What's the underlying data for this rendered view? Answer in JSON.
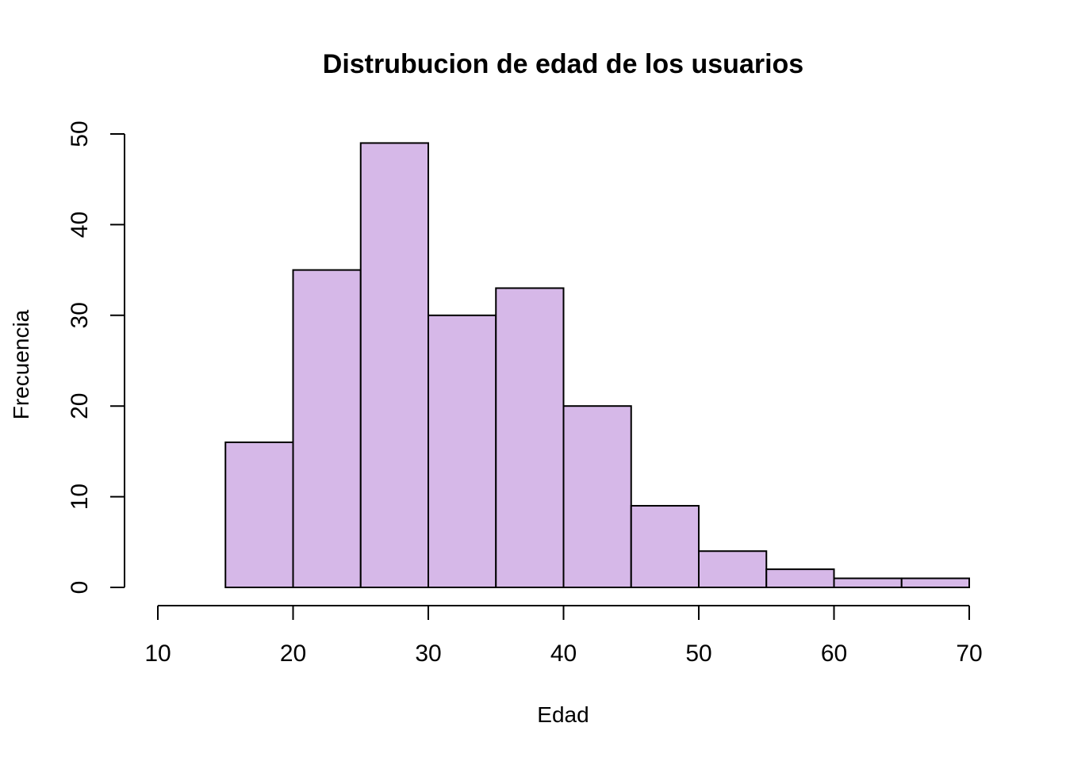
{
  "chart_data": {
    "type": "bar",
    "subtype": "histogram",
    "title": "Distrubucion de edad de los usuarios",
    "xlabel": "Edad",
    "ylabel": "Frecuencia",
    "bins": [
      {
        "from": 15,
        "to": 20,
        "value": 16
      },
      {
        "from": 20,
        "to": 25,
        "value": 35
      },
      {
        "from": 25,
        "to": 30,
        "value": 49
      },
      {
        "from": 30,
        "to": 35,
        "value": 30
      },
      {
        "from": 35,
        "to": 40,
        "value": 33
      },
      {
        "from": 40,
        "to": 45,
        "value": 20
      },
      {
        "from": 45,
        "to": 50,
        "value": 9
      },
      {
        "from": 50,
        "to": 55,
        "value": 4
      },
      {
        "from": 55,
        "to": 60,
        "value": 2
      },
      {
        "from": 60,
        "to": 65,
        "value": 1
      },
      {
        "from": 65,
        "to": 70,
        "value": 1
      }
    ],
    "xlim": [
      10,
      70
    ],
    "ylim": [
      0,
      50
    ],
    "x_ticks": [
      "10",
      "20",
      "30",
      "40",
      "50",
      "60",
      "70"
    ],
    "y_ticks": [
      "0",
      "10",
      "20",
      "30",
      "40",
      "50"
    ],
    "grid": false,
    "legend": false,
    "bar_color": "#D6B8E8",
    "edge_color": "#000000"
  }
}
